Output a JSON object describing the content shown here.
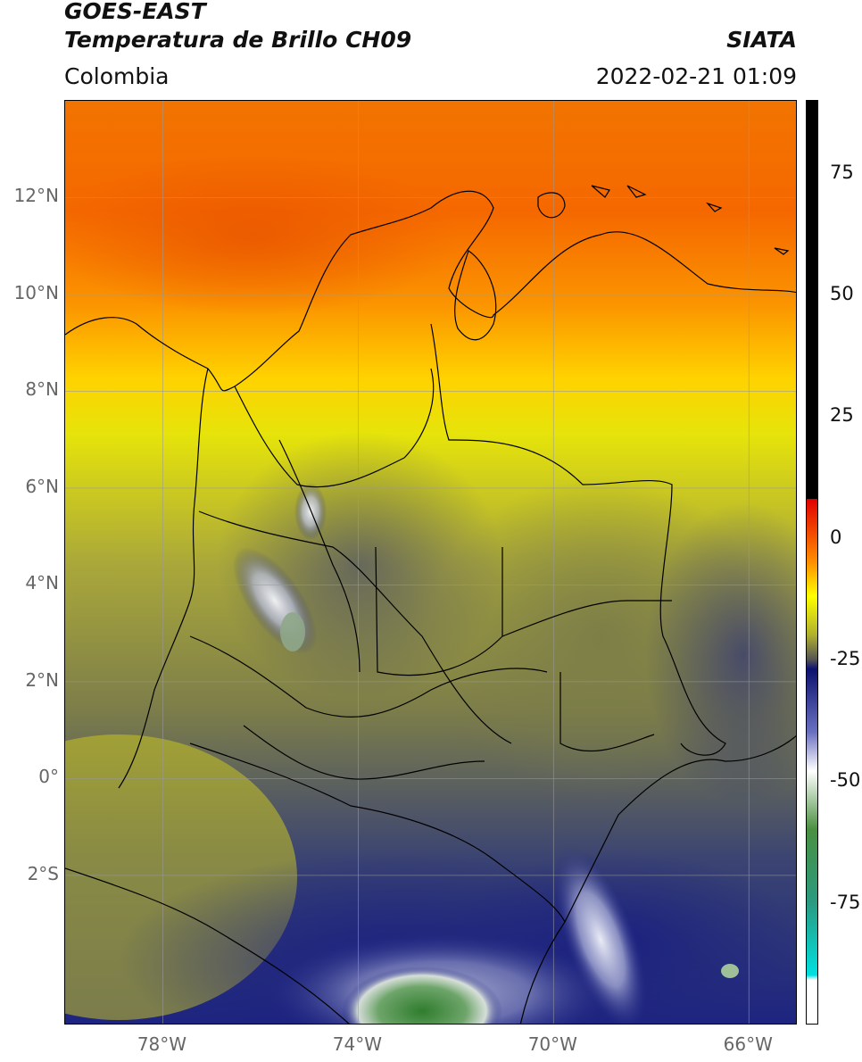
{
  "header": {
    "line1": "GOES-EAST",
    "line2": "Temperatura de Brillo CH09",
    "region": "Colombia",
    "brand": "SIATA",
    "datetime": "2022-02-21 01:09"
  },
  "map": {
    "lon_range": [
      -80,
      -65
    ],
    "lat_range": [
      -5.1,
      14.0
    ],
    "lat_ticks": [
      {
        "lat": 12,
        "label": "12°N"
      },
      {
        "lat": 10,
        "label": "10°N"
      },
      {
        "lat": 8,
        "label": "8°N"
      },
      {
        "lat": 6,
        "label": "6°N"
      },
      {
        "lat": 4,
        "label": "4°N"
      },
      {
        "lat": 2,
        "label": "2°N"
      },
      {
        "lat": 0,
        "label": "0°"
      },
      {
        "lat": -2,
        "label": "2°S"
      }
    ],
    "lon_ticks": [
      {
        "lon": -78,
        "label": "78°W"
      },
      {
        "lon": -74,
        "label": "74°W"
      },
      {
        "lon": -70,
        "label": "70°W"
      },
      {
        "lon": -66,
        "label": "66°W"
      }
    ],
    "colors": {
      "warm": "#f06a00",
      "orange": "#ff9a00",
      "yellow": "#f6f000",
      "olive": "#b8b43a",
      "gray_olive": "#75784a",
      "slate": "#4b5564",
      "navy": "#1a2080",
      "white_cloud": "#e8ecf4",
      "green": "#3e8a3a"
    }
  },
  "colorbar": {
    "range": [
      -100,
      90
    ],
    "ticks": [
      {
        "value": 75,
        "label": "75"
      },
      {
        "value": 50,
        "label": "50"
      },
      {
        "value": 25,
        "label": "25"
      },
      {
        "value": 0,
        "label": "0"
      },
      {
        "value": -25,
        "label": "-25"
      },
      {
        "value": -50,
        "label": "-50"
      },
      {
        "value": -75,
        "label": "-75"
      }
    ]
  }
}
